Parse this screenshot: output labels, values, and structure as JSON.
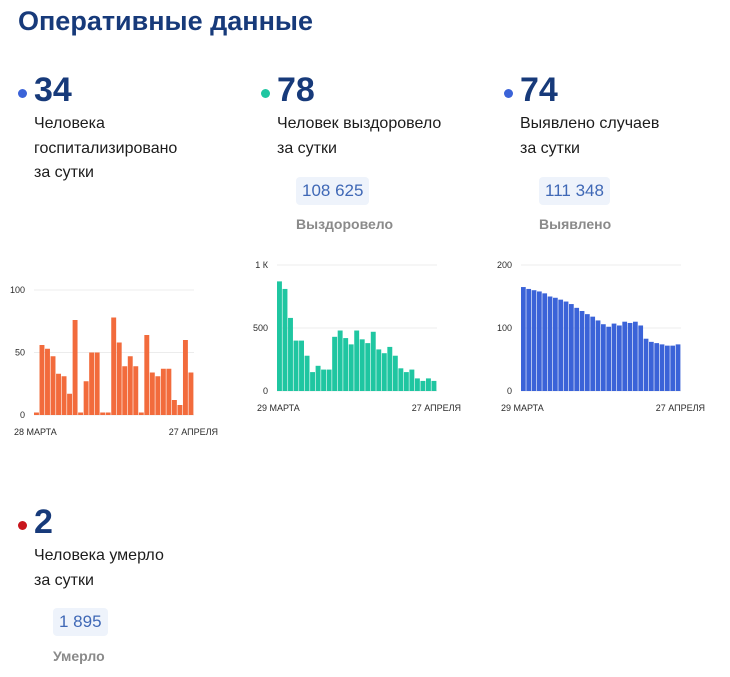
{
  "page": {
    "title": "Оперативные данные"
  },
  "stats": [
    {
      "number": "34",
      "description": "Человека\nгоспитализировано\nза сутки",
      "dot_color": "#3b63d8"
    },
    {
      "number": "78",
      "description": "Человек выздоровело\nза сутки",
      "total": "108 625",
      "total_label": "Выздоровело",
      "dot_color": "#1fc6a1"
    },
    {
      "number": "74",
      "description": "Выявлено случаев\nза сутки",
      "total": "111 348",
      "total_label": "Выявлено",
      "dot_color": "#3b63d8"
    },
    {
      "number": "2",
      "description": "Человека умерло\nза сутки",
      "total": "1 895",
      "total_label": "Умерло",
      "dot_color": "#c8161d"
    }
  ],
  "chart_data": [
    {
      "type": "bar",
      "color": "#f26b3c",
      "ylim": [
        0,
        100
      ],
      "ytick_labels": [
        "0",
        "50",
        "100"
      ],
      "x_start_label": "28 МАРТА",
      "x_end_label": "27 АПРЕЛЯ",
      "values": [
        2,
        56,
        53,
        47,
        33,
        31,
        17,
        76,
        2,
        27,
        50,
        50,
        2,
        2,
        78,
        58,
        39,
        47,
        39,
        2,
        64,
        34,
        31,
        37,
        37,
        12,
        8,
        60,
        34
      ]
    },
    {
      "type": "bar",
      "color": "#1fc6a1",
      "ylim": [
        0,
        1000
      ],
      "ytick_labels": [
        "0",
        "500",
        "1 К"
      ],
      "x_start_label": "29 МАРТА",
      "x_end_label": "27 АПРЕЛЯ",
      "values": [
        870,
        810,
        580,
        400,
        400,
        280,
        150,
        200,
        170,
        170,
        430,
        480,
        420,
        370,
        480,
        410,
        380,
        470,
        330,
        300,
        350,
        280,
        180,
        150,
        170,
        100,
        80,
        100,
        80
      ]
    },
    {
      "type": "bar",
      "color": "#3b63d8",
      "ylim": [
        0,
        200
      ],
      "ytick_labels": [
        "0",
        "100",
        "200"
      ],
      "x_start_label": "29 МАРТА",
      "x_end_label": "27 АПРЕЛЯ",
      "values": [
        165,
        162,
        160,
        158,
        155,
        150,
        148,
        145,
        142,
        138,
        132,
        127,
        122,
        118,
        112,
        106,
        102,
        107,
        104,
        110,
        108,
        110,
        104,
        83,
        78,
        76,
        74,
        72,
        72,
        74
      ]
    }
  ]
}
